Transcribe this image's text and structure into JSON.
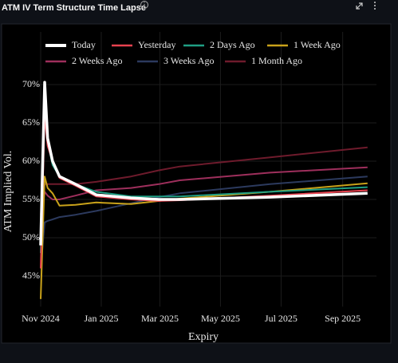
{
  "chart_data": {
    "type": "line",
    "title": "ATM IV Term Structure Time Lapse",
    "xlabel": "Expiry",
    "ylabel": "ATM Implied Vol.",
    "x": [
      "2024-11-01",
      "2024-11-05",
      "2024-11-08",
      "2024-11-13",
      "2024-11-20",
      "2024-12-06",
      "2024-12-27",
      "2025-01-31",
      "2025-02-28",
      "2025-03-21",
      "2025-06-20",
      "2025-09-26"
    ],
    "xlim": [
      "2024-10-28",
      "2025-10-05"
    ],
    "xticks": [
      {
        "value": "2024-11-01",
        "label": "Nov 2024"
      },
      {
        "value": "2025-01-01",
        "label": "Jan 2025"
      },
      {
        "value": "2025-03-01",
        "label": "Mar 2025"
      },
      {
        "value": "2025-05-01",
        "label": "May 2025"
      },
      {
        "value": "2025-07-01",
        "label": "Jul 2025"
      },
      {
        "value": "2025-09-01",
        "label": "Sep 2025"
      }
    ],
    "ylim": [
      41,
      71
    ],
    "yticks": [
      {
        "value": 45,
        "label": "45%"
      },
      {
        "value": 50,
        "label": "50%"
      },
      {
        "value": 55,
        "label": "55%"
      },
      {
        "value": 60,
        "label": "60%"
      },
      {
        "value": 65,
        "label": "65%"
      },
      {
        "value": 70,
        "label": "70%"
      }
    ],
    "grid": true,
    "series": [
      {
        "name": "Today",
        "color": "#ffffff",
        "values": [
          49,
          70.3,
          63,
          60,
          58,
          57,
          55.6,
          55.2,
          55,
          55,
          55.3,
          55.8
        ]
      },
      {
        "name": "Yesterday",
        "color": "#e8424f",
        "values": [
          46,
          66,
          62,
          60,
          57.8,
          56.8,
          55.4,
          55,
          54.8,
          54.9,
          55.5,
          56.2
        ]
      },
      {
        "name": "2 Days Ago",
        "color": "#1f9e83",
        "values": [
          48,
          67.5,
          62.5,
          59.5,
          58,
          57,
          56,
          55.4,
          55.4,
          55.4,
          56,
          56.6
        ]
      },
      {
        "name": "1 Week Ago",
        "color": "#c9a21a",
        "values": [
          42,
          58,
          56.5,
          55.8,
          54.2,
          54.3,
          54.6,
          54.4,
          54.8,
          55.1,
          56,
          57.1
        ]
      },
      {
        "name": "2 Weeks Ago",
        "color": "#9e2f5c",
        "values": [
          52,
          56,
          55.5,
          55,
          55,
          55.5,
          56.2,
          56.5,
          57,
          57.5,
          58.5,
          59.2
        ]
      },
      {
        "name": "3 Weeks Ago",
        "color": "#2c3a5e",
        "values": [
          46,
          52,
          52.2,
          52.4,
          52.7,
          53,
          53.5,
          54.5,
          55.3,
          55.8,
          57,
          58
        ]
      },
      {
        "name": "1 Month Ago",
        "color": "#6e1b2c",
        "values": [
          53,
          57,
          57,
          57,
          57,
          57,
          57.3,
          58,
          58.8,
          59.3,
          60.5,
          61.8
        ]
      }
    ]
  }
}
